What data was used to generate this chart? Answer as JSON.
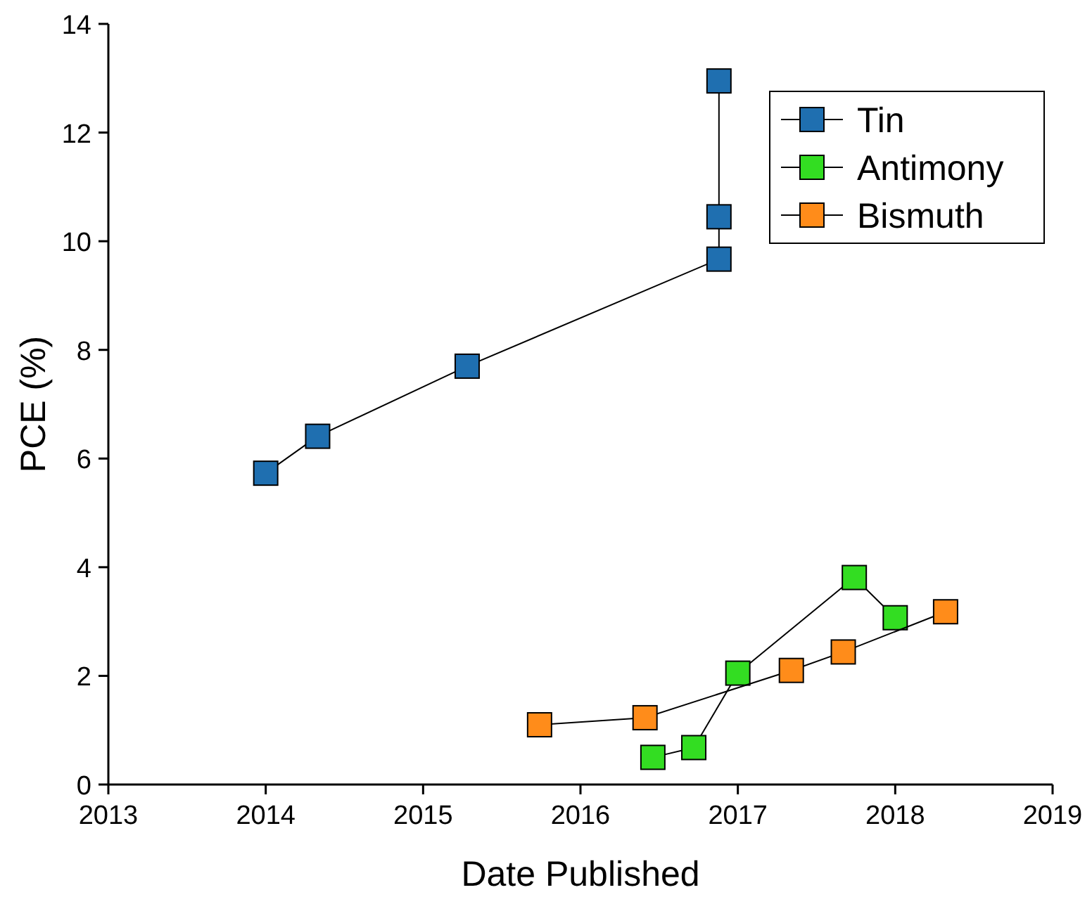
{
  "chart_data": {
    "type": "line",
    "xlabel": "Date Published",
    "ylabel": "PCE (%)",
    "xlim": [
      2013,
      2019
    ],
    "xticks": [
      2013,
      2014,
      2015,
      2016,
      2017,
      2018,
      2019
    ],
    "ylim": [
      0,
      14
    ],
    "yticks": [
      0,
      2,
      4,
      6,
      8,
      10,
      12,
      14
    ],
    "marker": "square",
    "line_style": "solid",
    "legend": "top right",
    "grid": false,
    "series": [
      {
        "name": "Tin",
        "color": "#1f6fb0",
        "x": [
          2014.0,
          2014.33,
          2015.28,
          2016.88,
          2016.88,
          2016.88
        ],
        "values": [
          5.73,
          6.41,
          7.7,
          9.67,
          10.45,
          12.95
        ]
      },
      {
        "name": "Antimony",
        "color": "#33dd22",
        "x": [
          2016.46,
          2016.72,
          2017.0,
          2017.74,
          2018.0
        ],
        "values": [
          0.5,
          0.68,
          2.05,
          3.81,
          3.07
        ]
      },
      {
        "name": "Bismuth",
        "color": "#ff8c1a",
        "x": [
          2015.74,
          2016.41,
          2017.34,
          2017.67,
          2018.32
        ],
        "values": [
          1.1,
          1.23,
          2.1,
          2.44,
          3.18
        ]
      }
    ]
  }
}
